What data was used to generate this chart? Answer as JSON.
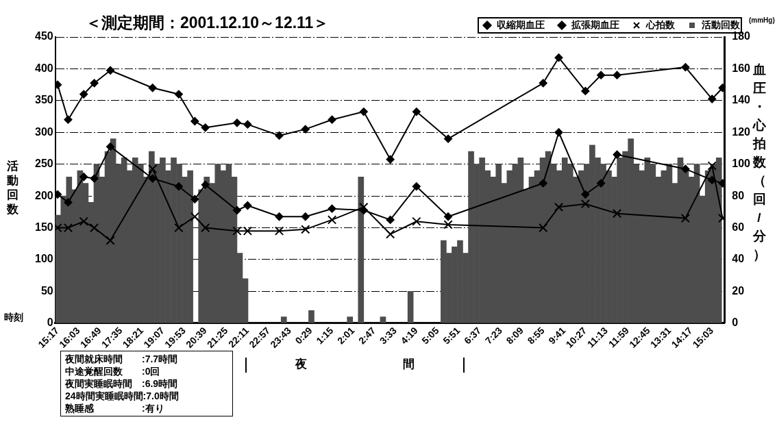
{
  "chart_data": {
    "type": "line",
    "title": "＜測定期間：2001.12.10～12.11＞",
    "xlabel": "時刻",
    "ylabel": "活動回数",
    "y2label": "血圧・心拍数（回/分）",
    "xlim": [
      "2001-12-10T15:12",
      "2001-12-11T15:30"
    ],
    "xticks": [
      {
        "value": "2001-12-10T15:17",
        "label": "15:17"
      },
      {
        "value": "2001-12-10T16:03",
        "label": "16:03"
      },
      {
        "value": "2001-12-10T16:49",
        "label": "16:49"
      },
      {
        "value": "2001-12-10T17:35",
        "label": "17:35"
      },
      {
        "value": "2001-12-10T18:21",
        "label": "18:21"
      },
      {
        "value": "2001-12-10T19:07",
        "label": "19:07"
      },
      {
        "value": "2001-12-10T19:53",
        "label": "19:53"
      },
      {
        "value": "2001-12-10T20:39",
        "label": "20:39"
      },
      {
        "value": "2001-12-10T21:25",
        "label": "21:25"
      },
      {
        "value": "2001-12-10T22:11",
        "label": "22:11"
      },
      {
        "value": "2001-12-10T22:57",
        "label": "22:57"
      },
      {
        "value": "2001-12-10T23:43",
        "label": "23:43"
      },
      {
        "value": "2001-12-11T00:29",
        "label": "0:29"
      },
      {
        "value": "2001-12-11T01:15",
        "label": "1:15"
      },
      {
        "value": "2001-12-11T02:01",
        "label": "2:01"
      },
      {
        "value": "2001-12-11T02:47",
        "label": "2:47"
      },
      {
        "value": "2001-12-11T03:33",
        "label": "3:33"
      },
      {
        "value": "2001-12-11T04:19",
        "label": "4:19"
      },
      {
        "value": "2001-12-11T05:05",
        "label": "5:05"
      },
      {
        "value": "2001-12-11T05:51",
        "label": "5:51"
      },
      {
        "value": "2001-12-11T06:37",
        "label": "6:37"
      },
      {
        "value": "2001-12-11T07:23",
        "label": "7:23"
      },
      {
        "value": "2001-12-11T08:09",
        "label": "8:09"
      },
      {
        "value": "2001-12-11T08:55",
        "label": "8:55"
      },
      {
        "value": "2001-12-11T09:41",
        "label": "9:41"
      },
      {
        "value": "2001-12-11T10:27",
        "label": "10:27"
      },
      {
        "value": "2001-12-11T11:13",
        "label": "11:13"
      },
      {
        "value": "2001-12-11T11:59",
        "label": "11:59"
      },
      {
        "value": "2001-12-11T12:45",
        "label": "12:45"
      },
      {
        "value": "2001-12-11T13:31",
        "label": "13:31"
      },
      {
        "value": "2001-12-11T14:17",
        "label": "14:17"
      },
      {
        "value": "2001-12-11T15:03",
        "label": "15:03"
      }
    ],
    "ylim": [
      0,
      450
    ],
    "yticks": [
      0,
      50,
      100,
      150,
      200,
      250,
      300,
      350,
      400,
      450
    ],
    "y2lim": [
      0,
      180
    ],
    "y2ticks": [
      0,
      20,
      40,
      60,
      80,
      100,
      120,
      140,
      160,
      180
    ],
    "grid": "y",
    "legend": "top right",
    "annotations": [
      "(mmHg)",
      "夜間",
      "夜間就床時間　　:7.7時間",
      "中途覚醒回数　　:0回",
      "夜間実睡眠時間　:6.9時間",
      "24時間実睡眠時間:7.0時間",
      "熟睡感　　　　　:有り"
    ],
    "series": [
      {
        "name": "活動回数",
        "type": "bar",
        "color": "#4d4d4d",
        "x": [
          "2001-12-10T15:18",
          "2001-12-10T15:30",
          "2001-12-10T15:42",
          "2001-12-10T15:54",
          "2001-12-10T16:06",
          "2001-12-10T16:18",
          "2001-12-10T16:30",
          "2001-12-10T16:42",
          "2001-12-10T16:54",
          "2001-12-10T17:06",
          "2001-12-10T17:18",
          "2001-12-10T17:30",
          "2001-12-10T17:42",
          "2001-12-10T17:54",
          "2001-12-10T18:06",
          "2001-12-10T18:18",
          "2001-12-10T18:30",
          "2001-12-10T18:42",
          "2001-12-10T18:54",
          "2001-12-10T19:06",
          "2001-12-10T19:18",
          "2001-12-10T19:30",
          "2001-12-10T19:42",
          "2001-12-10T19:54",
          "2001-12-10T20:06",
          "2001-12-10T20:18",
          "2001-12-10T20:30",
          "2001-12-10T20:42",
          "2001-12-10T20:54",
          "2001-12-10T21:06",
          "2001-12-10T21:18",
          "2001-12-10T21:30",
          "2001-12-10T21:42",
          "2001-12-10T21:54",
          "2001-12-10T22:06",
          "2001-12-10T22:18",
          "2001-12-10T22:30",
          "2001-12-10T22:42",
          "2001-12-10T22:54",
          "2001-12-10T23:06",
          "2001-12-10T23:18",
          "2001-12-10T23:30",
          "2001-12-10T23:42",
          "2001-12-10T23:54",
          "2001-12-11T00:06",
          "2001-12-11T00:18",
          "2001-12-11T00:30",
          "2001-12-11T00:42",
          "2001-12-11T00:54",
          "2001-12-11T01:06",
          "2001-12-11T01:18",
          "2001-12-11T01:30",
          "2001-12-11T01:42",
          "2001-12-11T01:54",
          "2001-12-11T02:06",
          "2001-12-11T02:18",
          "2001-12-11T02:30",
          "2001-12-11T02:42",
          "2001-12-11T02:54",
          "2001-12-11T03:06",
          "2001-12-11T03:18",
          "2001-12-11T03:30",
          "2001-12-11T03:42",
          "2001-12-11T03:54",
          "2001-12-11T04:06",
          "2001-12-11T04:18",
          "2001-12-11T04:30",
          "2001-12-11T04:42",
          "2001-12-11T04:54",
          "2001-12-11T05:06",
          "2001-12-11T05:18",
          "2001-12-11T05:30",
          "2001-12-11T05:42",
          "2001-12-11T05:54",
          "2001-12-11T06:06",
          "2001-12-11T06:18",
          "2001-12-11T06:30",
          "2001-12-11T06:42",
          "2001-12-11T06:54",
          "2001-12-11T07:06",
          "2001-12-11T07:18",
          "2001-12-11T07:30",
          "2001-12-11T07:42",
          "2001-12-11T07:54",
          "2001-12-11T08:06",
          "2001-12-11T08:18",
          "2001-12-11T08:30",
          "2001-12-11T08:42",
          "2001-12-11T08:54",
          "2001-12-11T09:06",
          "2001-12-11T09:18",
          "2001-12-11T09:30",
          "2001-12-11T09:42",
          "2001-12-11T09:54",
          "2001-12-11T10:06",
          "2001-12-11T10:18",
          "2001-12-11T10:30",
          "2001-12-11T10:42",
          "2001-12-11T10:54",
          "2001-12-11T11:06",
          "2001-12-11T11:18",
          "2001-12-11T11:30",
          "2001-12-11T11:42",
          "2001-12-11T11:54",
          "2001-12-11T12:06",
          "2001-12-11T12:18",
          "2001-12-11T12:30",
          "2001-12-11T12:42",
          "2001-12-11T12:54",
          "2001-12-11T13:06",
          "2001-12-11T13:18",
          "2001-12-11T13:30",
          "2001-12-11T13:42",
          "2001-12-11T13:54",
          "2001-12-11T14:06",
          "2001-12-11T14:18",
          "2001-12-11T14:30",
          "2001-12-11T14:42",
          "2001-12-11T14:54",
          "2001-12-11T15:06",
          "2001-12-11T15:18"
        ],
        "values": [
          170,
          200,
          230,
          210,
          240,
          220,
          190,
          250,
          230,
          270,
          290,
          250,
          260,
          240,
          260,
          250,
          230,
          270,
          250,
          260,
          240,
          260,
          250,
          230,
          240,
          0,
          210,
          230,
          220,
          250,
          240,
          250,
          230,
          110,
          70,
          0,
          0,
          0,
          0,
          0,
          0,
          10,
          0,
          0,
          0,
          0,
          20,
          0,
          0,
          0,
          0,
          0,
          0,
          10,
          0,
          230,
          0,
          0,
          0,
          10,
          0,
          0,
          0,
          0,
          50,
          0,
          0,
          0,
          0,
          0,
          130,
          110,
          120,
          130,
          110,
          270,
          250,
          260,
          240,
          230,
          250,
          220,
          240,
          250,
          260,
          210,
          230,
          240,
          260,
          270,
          250,
          240,
          260,
          250,
          230,
          240,
          250,
          280,
          260,
          250,
          240,
          230,
          260,
          270,
          290,
          250,
          240,
          260,
          250,
          230,
          240,
          250,
          220,
          260,
          240,
          230,
          250,
          200,
          240,
          250,
          260
        ]
      },
      {
        "name": "収縮期血圧",
        "axis": "y2",
        "color": "#000000",
        "marker": "diamond",
        "x": [
          "2001-12-10T15:17",
          "2001-12-10T15:40",
          "2001-12-10T16:14",
          "2001-12-10T16:37",
          "2001-12-10T17:12",
          "2001-12-10T18:44",
          "2001-12-10T19:41",
          "2001-12-10T20:16",
          "2001-12-10T20:39",
          "2001-12-10T21:48",
          "2001-12-10T22:11",
          "2001-12-10T23:20",
          "2001-12-11T00:17",
          "2001-12-11T01:15",
          "2001-12-11T02:24",
          "2001-12-11T03:22",
          "2001-12-11T04:19",
          "2001-12-11T05:28",
          "2001-12-11T08:55",
          "2001-12-11T09:29",
          "2001-12-11T10:27",
          "2001-12-11T11:01",
          "2001-12-11T11:36",
          "2001-12-11T14:05",
          "2001-12-11T15:03",
          "2001-12-11T15:26"
        ],
        "values": [
          150,
          128,
          144,
          151,
          159,
          148,
          144,
          127,
          123,
          126,
          125,
          118,
          122,
          128,
          133,
          103,
          133,
          116,
          151,
          167,
          146,
          156,
          156,
          161,
          141,
          148
        ]
      },
      {
        "name": "拡張期血圧",
        "axis": "y2",
        "color": "#000000",
        "marker": "diamond",
        "x": [
          "2001-12-10T15:17",
          "2001-12-10T15:40",
          "2001-12-10T16:14",
          "2001-12-10T16:37",
          "2001-12-10T17:12",
          "2001-12-10T18:44",
          "2001-12-10T19:41",
          "2001-12-10T20:16",
          "2001-12-10T20:39",
          "2001-12-10T21:48",
          "2001-12-10T22:11",
          "2001-12-10T23:20",
          "2001-12-11T00:17",
          "2001-12-11T01:15",
          "2001-12-11T02:24",
          "2001-12-11T03:22",
          "2001-12-11T04:19",
          "2001-12-11T05:28",
          "2001-12-11T08:55",
          "2001-12-11T09:29",
          "2001-12-11T10:27",
          "2001-12-11T11:01",
          "2001-12-11T11:36",
          "2001-12-11T14:05",
          "2001-12-11T15:03",
          "2001-12-11T15:26"
        ],
        "values": [
          81,
          76,
          92,
          91,
          111,
          91,
          86,
          78,
          87,
          71,
          74,
          67,
          67,
          72,
          71,
          65,
          86,
          67,
          88,
          120,
          81,
          88,
          106,
          97,
          90,
          88
        ]
      },
      {
        "name": "心拍数",
        "axis": "y2",
        "color": "#000000",
        "marker": "cross",
        "x": [
          "2001-12-10T15:17",
          "2001-12-10T15:40",
          "2001-12-10T16:14",
          "2001-12-10T16:37",
          "2001-12-10T17:12",
          "2001-12-10T18:44",
          "2001-12-10T19:41",
          "2001-12-10T20:16",
          "2001-12-10T20:39",
          "2001-12-10T21:48",
          "2001-12-10T22:11",
          "2001-12-10T23:20",
          "2001-12-11T00:17",
          "2001-12-11T01:15",
          "2001-12-11T02:24",
          "2001-12-11T03:22",
          "2001-12-11T04:19",
          "2001-12-11T05:28",
          "2001-12-11T08:55",
          "2001-12-11T09:29",
          "2001-12-11T10:27",
          "2001-12-11T11:36",
          "2001-12-11T14:05",
          "2001-12-11T15:03",
          "2001-12-11T15:26"
        ],
        "values": [
          60,
          60,
          64,
          60,
          52,
          97,
          60,
          67,
          60,
          58,
          58,
          58,
          59,
          65,
          73,
          56,
          64,
          62,
          60,
          73,
          75,
          69,
          66,
          99,
          66
        ]
      }
    ]
  }
}
